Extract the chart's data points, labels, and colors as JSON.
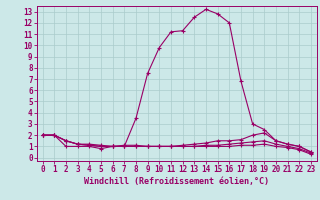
{
  "xlabel": "Windchill (Refroidissement éolien,°C)",
  "background_color": "#cce8e8",
  "grid_color": "#aacccc",
  "line_color": "#990066",
  "xlim": [
    -0.5,
    23.5
  ],
  "ylim": [
    -0.3,
    13.5
  ],
  "xticks": [
    0,
    1,
    2,
    3,
    4,
    5,
    6,
    7,
    8,
    9,
    10,
    11,
    12,
    13,
    14,
    15,
    16,
    17,
    18,
    19,
    20,
    21,
    22,
    23
  ],
  "yticks": [
    0,
    1,
    2,
    3,
    4,
    5,
    6,
    7,
    8,
    9,
    10,
    11,
    12,
    13
  ],
  "series": [
    {
      "x": [
        0,
        1,
        2,
        3,
        4,
        5,
        6,
        7,
        8,
        9,
        10,
        11,
        12,
        13,
        14,
        15,
        16,
        17,
        18,
        19,
        20,
        21,
        22,
        23
      ],
      "y": [
        2,
        2,
        1,
        1,
        1,
        0.8,
        1,
        1,
        3.5,
        7.5,
        9.8,
        11.2,
        11.3,
        12.5,
        13.2,
        12.8,
        12,
        6.8,
        3,
        2.5,
        1.5,
        1.2,
        1,
        0.5
      ]
    },
    {
      "x": [
        0,
        1,
        2,
        3,
        4,
        5,
        6,
        7,
        8,
        9,
        10,
        11,
        12,
        13,
        14,
        15,
        16,
        17,
        18,
        19,
        20,
        21,
        22,
        23
      ],
      "y": [
        2,
        2,
        1.5,
        1.2,
        1.2,
        1.1,
        1.0,
        1.1,
        1.1,
        1.0,
        1.0,
        1.0,
        1.1,
        1.2,
        1.3,
        1.5,
        1.5,
        1.6,
        2.0,
        2.2,
        1.5,
        1.2,
        1.0,
        0.5
      ]
    },
    {
      "x": [
        0,
        1,
        2,
        3,
        4,
        5,
        6,
        7,
        8,
        9,
        10,
        11,
        12,
        13,
        14,
        15,
        16,
        17,
        18,
        19,
        20,
        21,
        22,
        23
      ],
      "y": [
        2,
        2,
        1.5,
        1.2,
        1.1,
        1.0,
        1.0,
        1.0,
        1.0,
        1.0,
        1.0,
        1.0,
        1.0,
        1.0,
        1.1,
        1.1,
        1.2,
        1.3,
        1.4,
        1.5,
        1.2,
        1.0,
        0.8,
        0.4
      ]
    },
    {
      "x": [
        0,
        1,
        2,
        3,
        4,
        5,
        6,
        7,
        8,
        9,
        10,
        11,
        12,
        13,
        14,
        15,
        16,
        17,
        18,
        19,
        20,
        21,
        22,
        23
      ],
      "y": [
        2,
        2,
        1.5,
        1.2,
        1.1,
        1.0,
        1.0,
        1.0,
        1.0,
        1.0,
        1.0,
        1.0,
        1.0,
        1.0,
        1.0,
        1.0,
        1.0,
        1.1,
        1.1,
        1.2,
        1.0,
        0.9,
        0.7,
        0.3
      ]
    }
  ]
}
